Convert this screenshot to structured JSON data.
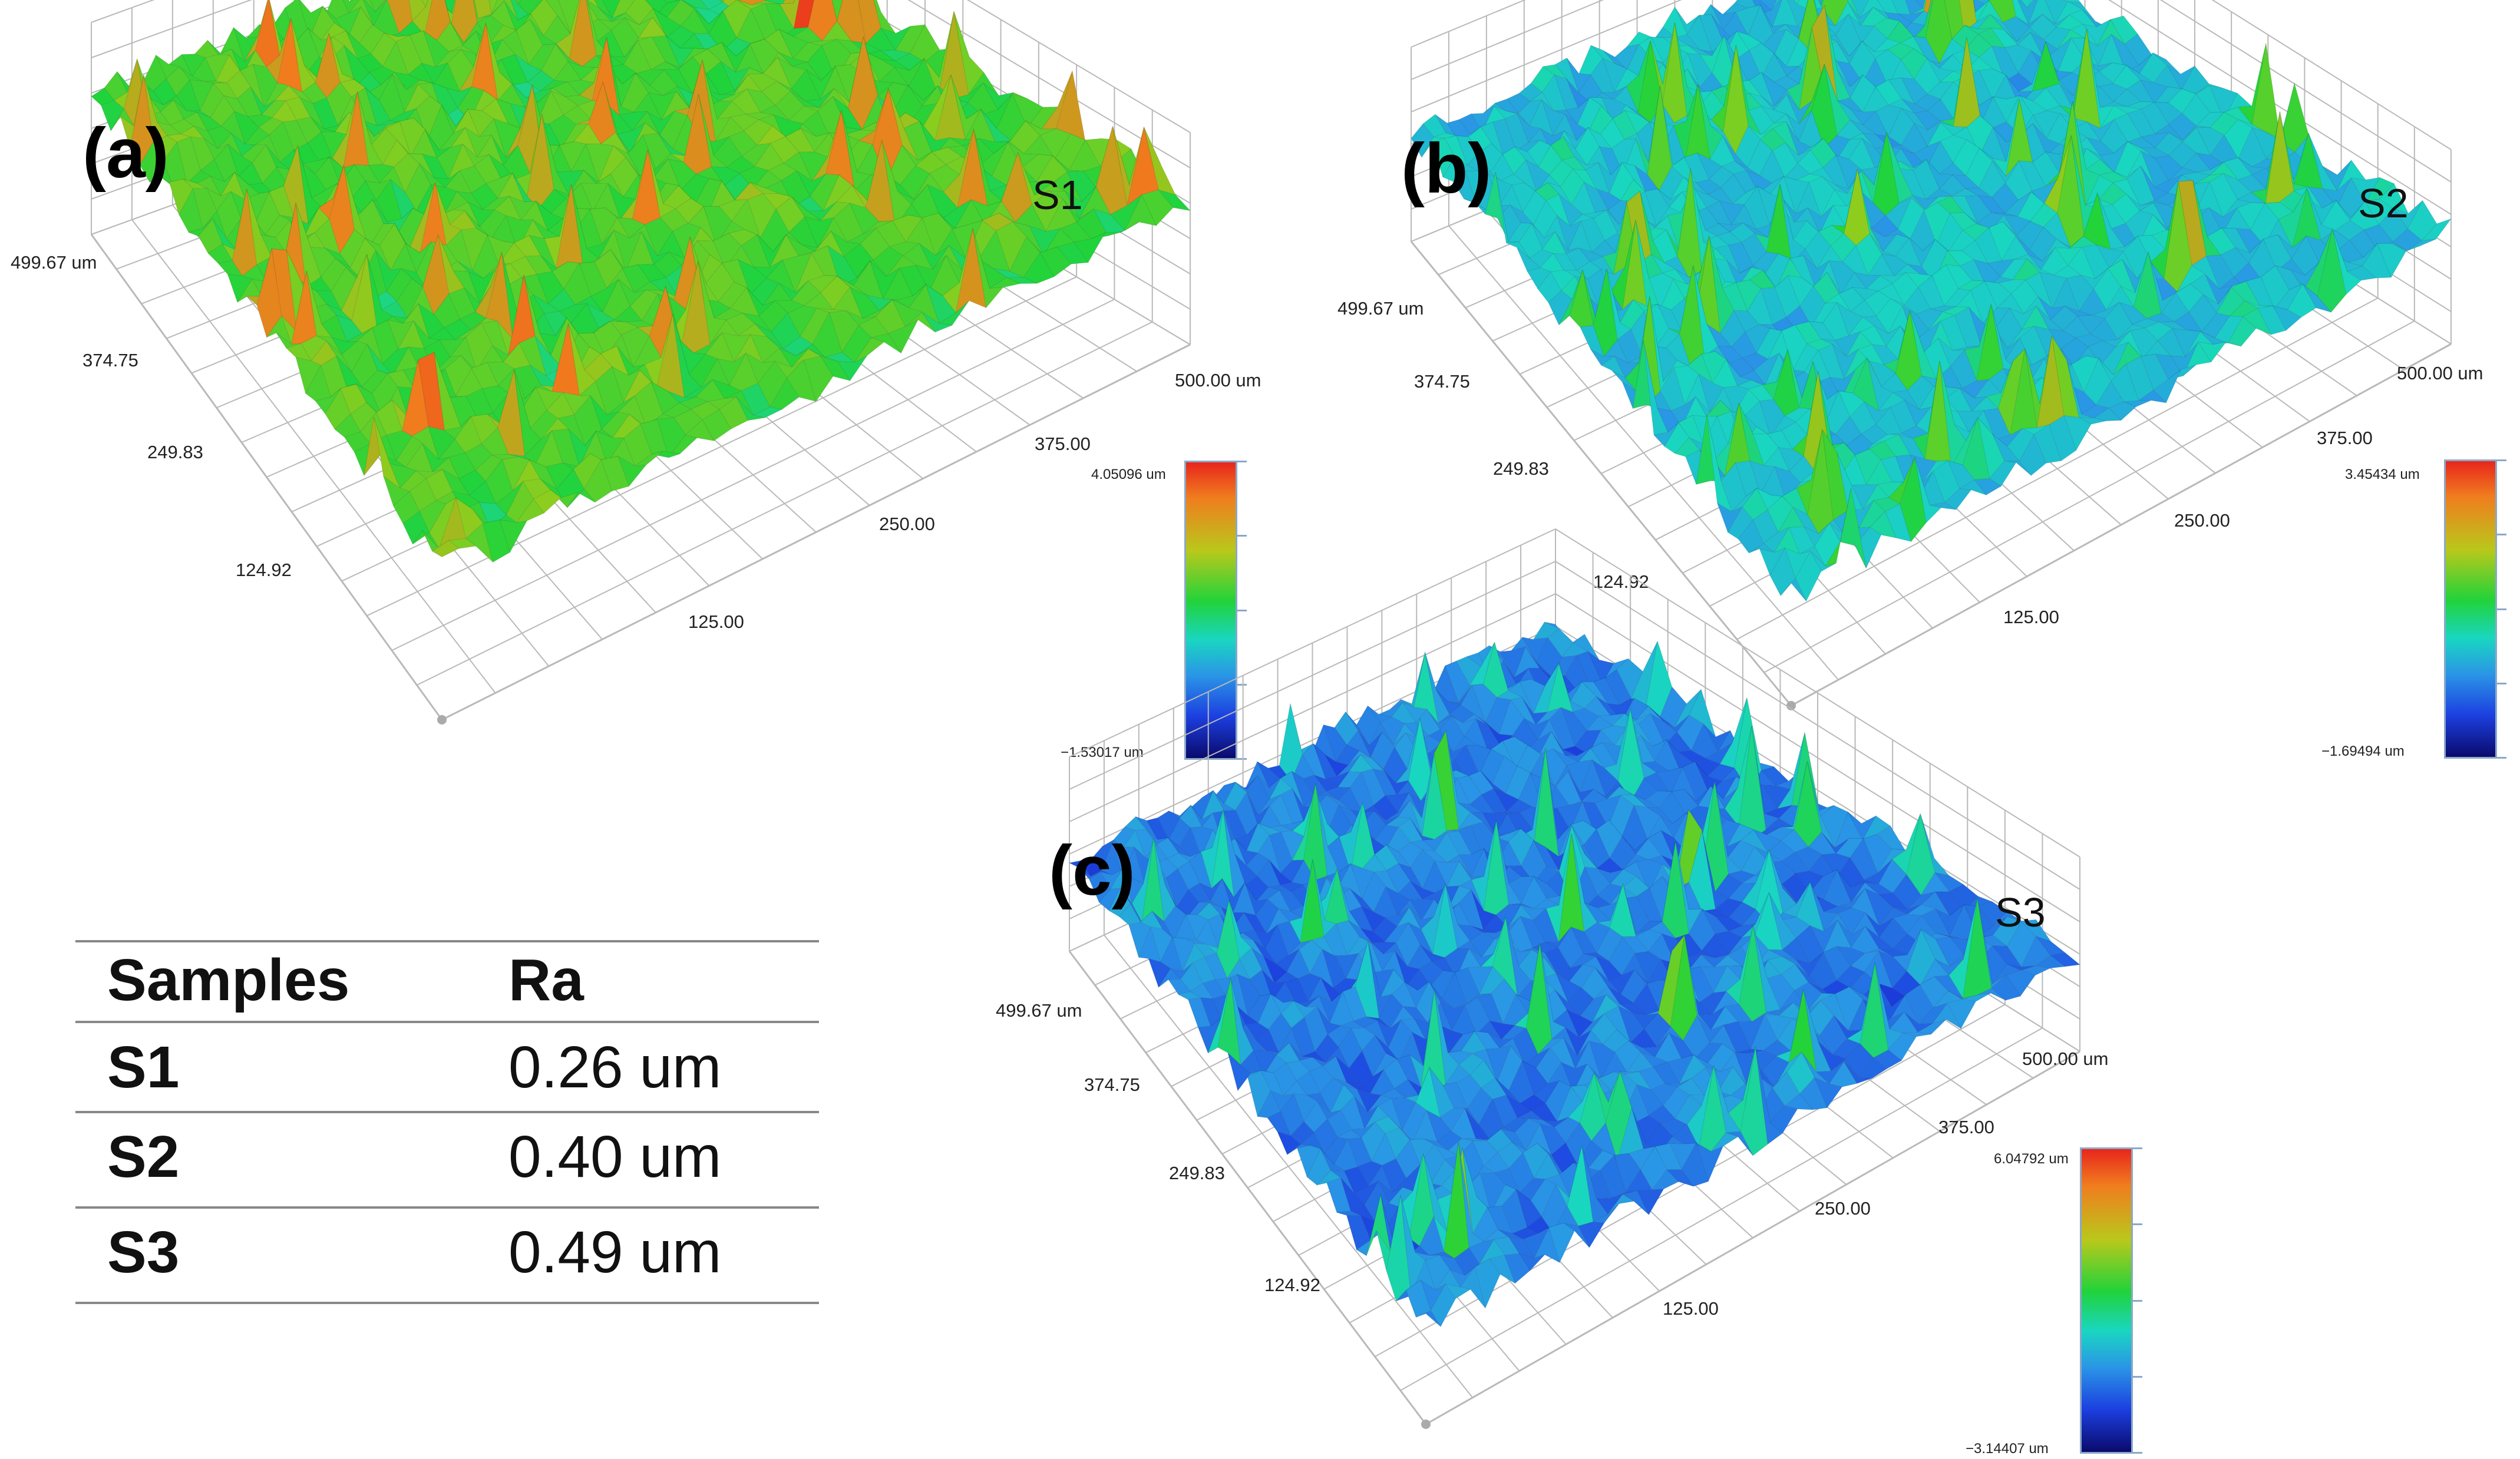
{
  "panels": [
    {
      "letter": "(a)",
      "sample": "S1",
      "y_ticks": [
        "499.67 um",
        "374.75",
        "249.83",
        "124.92"
      ],
      "x_ticks": [
        "500.00 um",
        "375.00",
        "250.00",
        "125.00"
      ],
      "scale_max": "4.05096 um",
      "scale_min": "−1.53017 um",
      "dominant_color": "green-red"
    },
    {
      "letter": "(b)",
      "sample": "S2",
      "y_ticks": [
        "499.67 um",
        "374.75",
        "249.83",
        "124.92"
      ],
      "x_ticks": [
        "500.00 um",
        "375.00",
        "250.00",
        "125.00"
      ],
      "scale_max": "3.45434 um",
      "scale_min": "−1.69494 um",
      "dominant_color": "cyan-green"
    },
    {
      "letter": "(c)",
      "sample": "S3",
      "y_ticks": [
        "499.67 um",
        "374.75",
        "249.83",
        "124.92"
      ],
      "x_ticks": [
        "500.00 um",
        "375.00",
        "250.00",
        "125.00"
      ],
      "scale_max": "6.04792 um",
      "scale_min": "−3.14407 um",
      "dominant_color": "blue-cyan"
    }
  ],
  "table": {
    "headers": [
      "Samples",
      "Ra"
    ],
    "rows": [
      [
        "S1",
        "0.26 um"
      ],
      [
        "S2",
        "0.40 um"
      ],
      [
        "S3",
        "0.49 um"
      ]
    ]
  },
  "colors": {
    "high": "#e8261c",
    "mid": "#21d33a",
    "low_mid": "#19c6e0",
    "low": "#0a0a6c",
    "grid": "#b9b9b9",
    "colorbar_frame": "#8aa8c8"
  }
}
